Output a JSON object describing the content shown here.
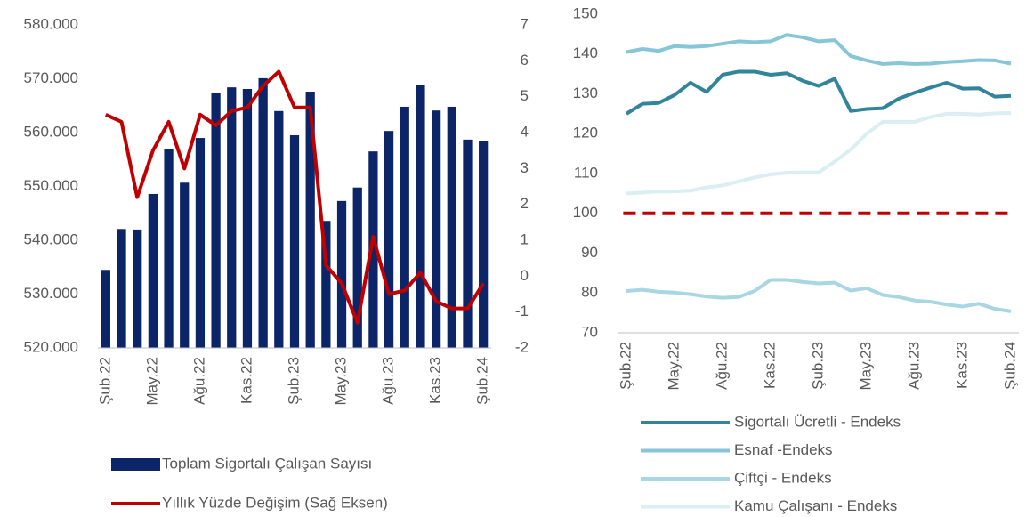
{
  "chart_data": [
    {
      "type": "bar",
      "categories": [
        "Şub.22",
        null,
        null,
        "May.22",
        null,
        null,
        "Ağu.22",
        null,
        null,
        "Kas.22",
        null,
        null,
        "Şub.23",
        null,
        null,
        "May.23",
        null,
        null,
        "Ağu.23",
        null,
        null,
        "Kas.23",
        null,
        null,
        "Şub.24"
      ],
      "ylim": [
        520000,
        580000
      ],
      "yticks": [
        {
          "value": 520000,
          "label": "520.000"
        },
        {
          "value": 530000,
          "label": "530.000"
        },
        {
          "value": 540000,
          "label": "540.000"
        },
        {
          "value": 550000,
          "label": "550.000"
        },
        {
          "value": 560000,
          "label": "560.000"
        },
        {
          "value": 570000,
          "label": "570.000"
        },
        {
          "value": 580000,
          "label": "580.000"
        }
      ],
      "y2lim": [
        -2,
        7
      ],
      "y2ticks": [
        -2,
        -1,
        0,
        1,
        2,
        3,
        4,
        5,
        6,
        7
      ],
      "series": [
        {
          "name": "Toplam Sigortalı Çalışan Sayısı",
          "type": "bar",
          "color": "#0c2468",
          "values": [
            534500,
            542100,
            542000,
            548600,
            557000,
            550700,
            559000,
            567400,
            568400,
            568100,
            570100,
            564000,
            559500,
            567600,
            543600,
            547300,
            549800,
            556500,
            560300,
            564800,
            568800,
            564100,
            564800,
            558700,
            558500
          ]
        },
        {
          "name": "Yıllık Yüzde Değişim (Sağ Eksen)",
          "type": "line",
          "axis": "y2",
          "color": "#c00000",
          "values": [
            4.5,
            4.3,
            2.2,
            3.5,
            4.3,
            3.0,
            4.5,
            4.2,
            4.6,
            4.7,
            5.3,
            5.7,
            4.7,
            4.7,
            0.3,
            -0.2,
            -1.3,
            1.1,
            -0.5,
            -0.4,
            0.1,
            -0.7,
            -0.9,
            -0.9,
            -0.2
          ]
        }
      ]
    },
    {
      "type": "line",
      "categories": [
        "Şub.22",
        null,
        null,
        "May.22",
        null,
        null,
        "Ağu.22",
        null,
        null,
        "Kas.22",
        null,
        null,
        "Şub.23",
        null,
        null,
        "May.23",
        null,
        null,
        "Ağu.23",
        null,
        null,
        "Kas.23",
        null,
        null,
        "Şub.24"
      ],
      "ylim": [
        70,
        150
      ],
      "yticks": [
        70,
        80,
        90,
        100,
        110,
        120,
        130,
        140,
        150
      ],
      "reference_line": {
        "value": 100,
        "color": "#c00000",
        "dashed": true
      },
      "series": [
        {
          "name": "Sigortalı Ücretli - Endeks",
          "color": "#31849b",
          "values": [
            125,
            127.5,
            127.7,
            129.7,
            132.8,
            130.5,
            134.8,
            135.6,
            135.6,
            134.8,
            135.2,
            133.3,
            132,
            133.8,
            125.7,
            126.2,
            126.4,
            128.8,
            130.3,
            131.6,
            132.8,
            131.3,
            131.4,
            129.3,
            129.5
          ]
        },
        {
          "name": "Esnaf -Endeks",
          "color": "#86c6d8",
          "values": [
            140.5,
            141.3,
            140.8,
            142,
            141.8,
            142,
            142.6,
            143.2,
            143,
            143.2,
            144.8,
            144.2,
            143.2,
            143.5,
            139.5,
            138.4,
            137.5,
            137.7,
            137.5,
            137.6,
            138,
            138.2,
            138.5,
            138.4,
            137.6
          ]
        },
        {
          "name": "Çiftçi - Endeks",
          "color": "#a8d6e3",
          "values": [
            80.5,
            80.8,
            80.3,
            80.1,
            79.7,
            79.1,
            78.8,
            79,
            80.5,
            83.3,
            83.3,
            82.8,
            82.4,
            82.6,
            80.6,
            81.2,
            79.5,
            79,
            78.1,
            77.8,
            77.1,
            76.6,
            77.3,
            76,
            75.4
          ]
        },
        {
          "name": "Kamu Çalışanı - Endeks",
          "color": "#daeef3",
          "values": [
            105,
            105.2,
            105.5,
            105.5,
            105.7,
            106.5,
            107,
            108,
            109,
            109.8,
            110.2,
            110.3,
            110.3,
            113,
            116,
            120,
            123,
            123,
            123,
            124.2,
            125,
            125,
            124.8,
            125.1,
            125.2
          ]
        }
      ]
    }
  ]
}
